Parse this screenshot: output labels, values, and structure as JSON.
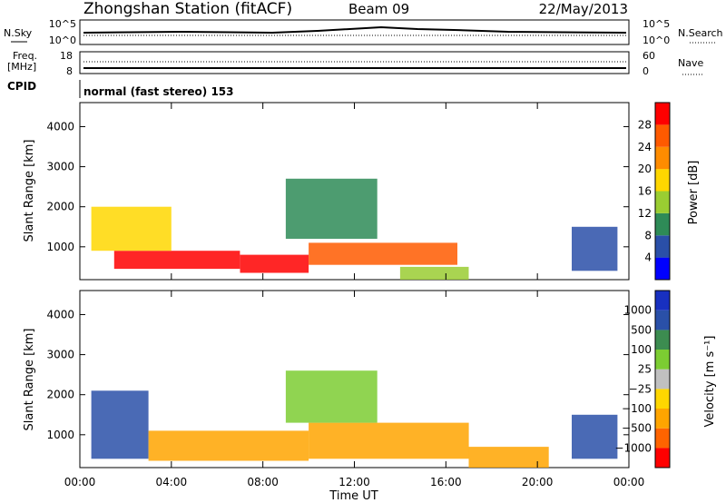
{
  "header": {
    "station": "Zhongshan Station (fitACF)",
    "beam": "Beam 09",
    "date": "22/May/2013"
  },
  "status_panels": {
    "noise": {
      "left_label": "N.Sky",
      "right_label": "N.Search",
      "left_ticks": [
        "10^5",
        "10^0"
      ],
      "right_ticks": [
        "10^5",
        "10^0"
      ]
    },
    "freq": {
      "left_label_1": "Freq.",
      "left_label_2": "[MHz]",
      "right_label": "Nave",
      "left_ticks": [
        "18",
        "8"
      ],
      "right_ticks": [
        "60",
        "0"
      ]
    },
    "cpid": {
      "label": "CPID",
      "value": "normal (fast stereo) 153"
    }
  },
  "x_axis": {
    "label": "Time UT",
    "ticks": [
      "00:00",
      "04:00",
      "08:00",
      "12:00",
      "16:00",
      "20:00",
      "00:00"
    ]
  },
  "colors": {
    "power": [
      "#0000ff",
      "#2a4fa8",
      "#2e8b57",
      "#9acd32",
      "#ffd700",
      "#ff8c00",
      "#ff5a00",
      "#ff0000"
    ],
    "velocity": [
      "#ff0000",
      "#ff6400",
      "#ffa500",
      "#ffd700",
      "#c0c0c0",
      "#7ccd32",
      "#3c8c50",
      "#2a50a8",
      "#1830c0"
    ]
  },
  "chart_data": [
    {
      "type": "heatmap",
      "ylabel": "Slant Range [km]",
      "xlabel": "",
      "y_ticks": [
        "1000",
        "2000",
        "3000",
        "4000"
      ],
      "ylim": [
        180,
        4600
      ],
      "xlim": [
        0,
        24
      ],
      "colorbar": {
        "label": "Power [dB]",
        "ticks": [
          "4",
          "8",
          "12",
          "16",
          "20",
          "24",
          "28"
        ],
        "range": [
          0,
          32
        ]
      },
      "regions": [
        {
          "t0": 1.5,
          "t1": 7.0,
          "r0": 450,
          "r1": 900,
          "level": 7
        },
        {
          "t0": 7.0,
          "t1": 10.0,
          "r0": 350,
          "r1": 800,
          "level": 7
        },
        {
          "t0": 10.0,
          "t1": 16.5,
          "r0": 550,
          "r1": 1100,
          "level": 6
        },
        {
          "t0": 0.5,
          "t1": 4.0,
          "r0": 900,
          "r1": 2000,
          "level": 4
        },
        {
          "t0": 9.0,
          "t1": 13.0,
          "r0": 1200,
          "r1": 2700,
          "level": 2
        },
        {
          "t0": 14.0,
          "t1": 17.0,
          "r0": 180,
          "r1": 500,
          "level": 3
        },
        {
          "t0": 21.5,
          "t1": 23.5,
          "r0": 400,
          "r1": 1500,
          "level": 1
        }
      ]
    },
    {
      "type": "heatmap",
      "ylabel": "Slant Range [km]",
      "xlabel": "Time UT",
      "y_ticks": [
        "1000",
        "2000",
        "3000",
        "4000"
      ],
      "ylim": [
        180,
        4600
      ],
      "xlim": [
        0,
        24
      ],
      "colorbar": {
        "label": "Velocity [m s⁻¹]",
        "ticks": [
          "1000",
          "500",
          "100",
          "25",
          "−25",
          "−100",
          "−500",
          "−1000"
        ],
        "range": [
          -1200,
          1200
        ]
      },
      "regions": [
        {
          "t0": 0.5,
          "t1": 3.0,
          "r0": 400,
          "r1": 2100,
          "level": 7
        },
        {
          "t0": 3.0,
          "t1": 10.0,
          "r0": 350,
          "r1": 1100,
          "level": 2
        },
        {
          "t0": 10.0,
          "t1": 17.0,
          "r0": 400,
          "r1": 1300,
          "level": 2
        },
        {
          "t0": 9.0,
          "t1": 13.0,
          "r0": 1300,
          "r1": 2600,
          "level": 5
        },
        {
          "t0": 17.0,
          "t1": 20.5,
          "r0": 180,
          "r1": 700,
          "level": 2
        },
        {
          "t0": 21.5,
          "t1": 23.5,
          "r0": 400,
          "r1": 1500,
          "level": 7
        }
      ]
    }
  ]
}
